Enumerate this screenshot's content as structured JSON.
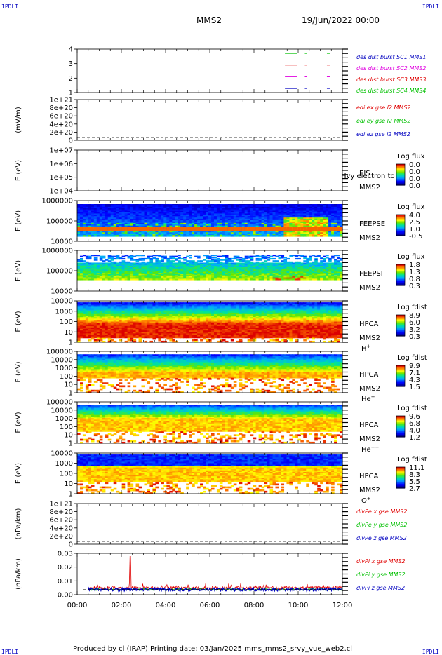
{
  "header": {
    "corner_left_top": "IPDLI",
    "corner_right_top": "IPDLI",
    "spacecraft": "MMS2",
    "date": "19/Jun/2022 00:00"
  },
  "footer": {
    "produced_by": "Produced by cl (IRAP)   Printing date: 03/Jan/2025   mms_mms2_srvy_vue_web2.cl",
    "corner_left_bottom": "IPDLI",
    "corner_right_bottom": "IPDLI"
  },
  "time_axis": {
    "ticks": [
      "00:00",
      "02:00",
      "04:00",
      "06:00",
      "08:00",
      "10:00",
      "12:00"
    ],
    "range_hours": [
      0,
      12
    ]
  },
  "colors": {
    "blue": "#0000c0",
    "red": "#e00000",
    "magenta": "#e000e0",
    "green": "#00c000",
    "plot_bg": "#ffffff"
  },
  "chart_data": [
    {
      "id": "burst",
      "type": "line",
      "ylabel": "",
      "ytick_labels": [
        "4",
        "3",
        "2",
        "1"
      ],
      "legend": [
        {
          "label": "des dist burst SC1 MMS1",
          "color": "#0000c0"
        },
        {
          "label": "des dist burst SC2 MMS2",
          "color": "#e000e0"
        },
        {
          "label": "des dist burst SC3 MMS3",
          "color": "#e00000"
        },
        {
          "label": "des dist burst SC4 MMS4",
          "color": "#00c000"
        }
      ],
      "series": [
        {
          "level": 4,
          "color": "#00c000",
          "intervals": [
            [
              9.4,
              9.95
            ],
            [
              10.3,
              10.4
            ],
            [
              11.3,
              11.45
            ]
          ]
        },
        {
          "level": 3,
          "color": "#e00000",
          "intervals": [
            [
              9.4,
              9.95
            ],
            [
              10.3,
              10.4
            ],
            [
              11.3,
              11.45
            ]
          ]
        },
        {
          "level": 2,
          "color": "#e000e0",
          "intervals": [
            [
              9.4,
              9.95
            ],
            [
              10.3,
              10.4
            ],
            [
              11.3,
              11.45
            ]
          ]
        },
        {
          "level": 1,
          "color": "#0000c0",
          "intervals": [
            [
              9.4,
              9.95
            ],
            [
              10.3,
              10.4
            ],
            [
              11.3,
              11.45
            ]
          ]
        }
      ]
    },
    {
      "id": "edi",
      "type": "line",
      "ylabel": "(mV/m)",
      "ytick_labels": [
        "1e+21",
        "8e+20",
        "6e+20",
        "4e+20",
        "2e+20",
        "0"
      ],
      "legend": [
        {
          "label": "edi ex gse l2 MMS2",
          "color": "#e00000"
        },
        {
          "label": "edi ey gse l2 MMS2",
          "color": "#00c000"
        },
        {
          "label": "edi ez gse l2 MMS2",
          "color": "#0000c0"
        }
      ],
      "dashed_zero": true
    },
    {
      "id": "eis",
      "type": "heatmap",
      "ylabel": "E (eV)",
      "ytick_labels": [
        "1e+07",
        "1e+06",
        "1e+05",
        "1e+04"
      ],
      "side_labels": [
        "EIS",
        "MMS2"
      ],
      "overlay_text": "Hvy electron to",
      "colorbar_title": "Log flux",
      "colorbar_ticks": [
        "0.0",
        "0.0",
        "0.0",
        "0.0"
      ],
      "empty": true
    },
    {
      "id": "feepse",
      "type": "heatmap",
      "ylabel": "E (eV)",
      "ytick_labels": [
        "1000000",
        "100000",
        "10000"
      ],
      "side_labels": [
        "FEEPSE",
        "MMS2"
      ],
      "colorbar_title": "Log flux",
      "colorbar_ticks": [
        "4.0",
        "2.5",
        "1.0",
        "-0.5"
      ]
    },
    {
      "id": "feepsi",
      "type": "heatmap",
      "ylabel": "E (eV)",
      "ytick_labels": [
        "1000000",
        "100000",
        "10000"
      ],
      "side_labels": [
        "FEEPSI",
        "MMS2"
      ],
      "colorbar_title": "Log flux",
      "colorbar_ticks": [
        "1.8",
        "1.3",
        "0.8",
        "0.3"
      ]
    },
    {
      "id": "hpca_h",
      "type": "heatmap",
      "ylabel": "E (eV)",
      "ytick_labels": [
        "10000",
        "1000",
        "100",
        "10",
        "1"
      ],
      "side_labels": [
        "HPCA",
        "MMS2"
      ],
      "species": "H",
      "species_sup": "+",
      "colorbar_title": "Log fdist",
      "colorbar_ticks": [
        "8.9",
        "6.0",
        "3.2",
        "0.3"
      ]
    },
    {
      "id": "hpca_he",
      "type": "heatmap",
      "ylabel": "E (eV)",
      "ytick_labels": [
        "100000",
        "10000",
        "1000",
        "100",
        "10",
        "1"
      ],
      "side_labels": [
        "HPCA",
        "MMS2"
      ],
      "species": "He",
      "species_sup": "+",
      "colorbar_title": "Log fdist",
      "colorbar_ticks": [
        "9.9",
        "7.1",
        "4.3",
        "1.5"
      ]
    },
    {
      "id": "hpca_hepp",
      "type": "heatmap",
      "ylabel": "E (eV)",
      "ytick_labels": [
        "100000",
        "10000",
        "1000",
        "100",
        "10",
        "1"
      ],
      "side_labels": [
        "HPCA",
        "MMS2"
      ],
      "species": "He",
      "species_sup": "++",
      "colorbar_title": "Log fdist",
      "colorbar_ticks": [
        "9.6",
        "6.8",
        "4.0",
        "1.2"
      ]
    },
    {
      "id": "hpca_o",
      "type": "heatmap",
      "ylabel": "E (eV)",
      "ytick_labels": [
        "10000",
        "1000",
        "100",
        "10",
        "1"
      ],
      "side_labels": [
        "HPCA",
        "MMS2"
      ],
      "species": "O",
      "species_sup": "+",
      "colorbar_title": "Log fdist",
      "colorbar_ticks": [
        "11.1",
        "8.3",
        "5.5",
        "2.7"
      ]
    },
    {
      "id": "divpe",
      "type": "line",
      "ylabel": "(nPa/km)",
      "ytick_labels": [
        "1e+21",
        "8e+20",
        "6e+20",
        "4e+20",
        "2e+20",
        "0"
      ],
      "legend": [
        {
          "label": "divPe x gse MMS2",
          "color": "#e00000"
        },
        {
          "label": "divPe y gse MMS2",
          "color": "#00c000"
        },
        {
          "label": "divPe z gse MMS2",
          "color": "#0000c0"
        }
      ],
      "dashed_zero": true
    },
    {
      "id": "divpi",
      "type": "line",
      "ylabel": "(nPa/km)",
      "ytick_labels": [
        "0.03",
        "0.02",
        "0.01",
        "0.00"
      ],
      "ylim": [
        -0.005,
        0.035
      ],
      "legend": [
        {
          "label": "divPi x gse MMS2",
          "color": "#e00000"
        },
        {
          "label": "divPi y gse MMS2",
          "color": "#00c000"
        },
        {
          "label": "divPi z gse MMS2",
          "color": "#0000c0"
        }
      ],
      "noise": {
        "baseline": 0.0,
        "x_amp": 0.006,
        "z_amp": 0.003,
        "spike_time_h": 2.4,
        "spike_value": 0.032,
        "start_h": 0.5
      }
    }
  ]
}
